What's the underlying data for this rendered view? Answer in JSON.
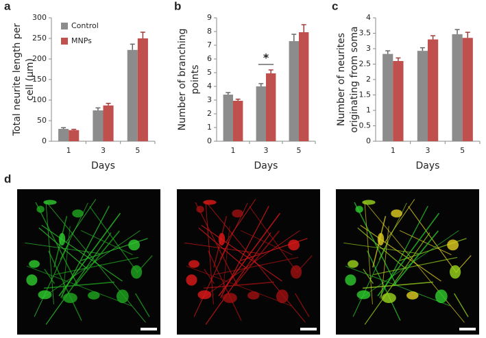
{
  "chart_data": [
    {
      "type": "bar",
      "panel_label": "a",
      "ylabel": [
        "Total neurite length per",
        "cell (µm)"
      ],
      "xlabel": "Days",
      "categories": [
        "1",
        "3",
        "5"
      ],
      "series": [
        {
          "name": "Control",
          "color": "#8c8c8c",
          "values": [
            30,
            75,
            222
          ],
          "errors": [
            3,
            6,
            14
          ]
        },
        {
          "name": "MNPs",
          "color": "#c0504d",
          "values": [
            27,
            87,
            250
          ],
          "errors": [
            2,
            5,
            15
          ]
        }
      ],
      "ylim": [
        0,
        300
      ],
      "yticks": [
        0,
        50,
        100,
        150,
        200,
        250,
        300
      ],
      "legend": "upper left"
    },
    {
      "type": "bar",
      "panel_label": "b",
      "ylabel": [
        "Number of branching",
        "points"
      ],
      "xlabel": "Days",
      "categories": [
        "1",
        "3",
        "5"
      ],
      "series": [
        {
          "name": "Control",
          "color": "#8c8c8c",
          "values": [
            3.4,
            4.0,
            7.3
          ],
          "errors": [
            0.15,
            0.2,
            0.5
          ]
        },
        {
          "name": "MNPs",
          "color": "#c0504d",
          "values": [
            2.95,
            4.95,
            7.95
          ],
          "errors": [
            0.12,
            0.25,
            0.55
          ]
        }
      ],
      "ylim": [
        0,
        9
      ],
      "yticks": [
        0,
        1,
        2,
        3,
        4,
        5,
        6,
        7,
        8,
        9
      ],
      "annotations": [
        {
          "text": "*"
        }
      ]
    },
    {
      "type": "bar",
      "panel_label": "c",
      "ylabel": [
        "Number of neurites",
        "originating from soma"
      ],
      "xlabel": "Days",
      "categories": [
        "1",
        "3",
        "5"
      ],
      "series": [
        {
          "name": "Control",
          "color": "#8c8c8c",
          "values": [
            2.83,
            2.93,
            3.47
          ],
          "errors": [
            0.1,
            0.1,
            0.15
          ]
        },
        {
          "name": "MNPs",
          "color": "#c0504d",
          "values": [
            2.6,
            3.3,
            3.35
          ],
          "errors": [
            0.1,
            0.12,
            0.18
          ]
        }
      ],
      "ylim": [
        0,
        4
      ],
      "yticks": [
        0,
        0.5,
        1,
        1.5,
        2,
        2.5,
        3,
        3.5,
        4
      ]
    }
  ],
  "panel_d": {
    "label": "d"
  }
}
